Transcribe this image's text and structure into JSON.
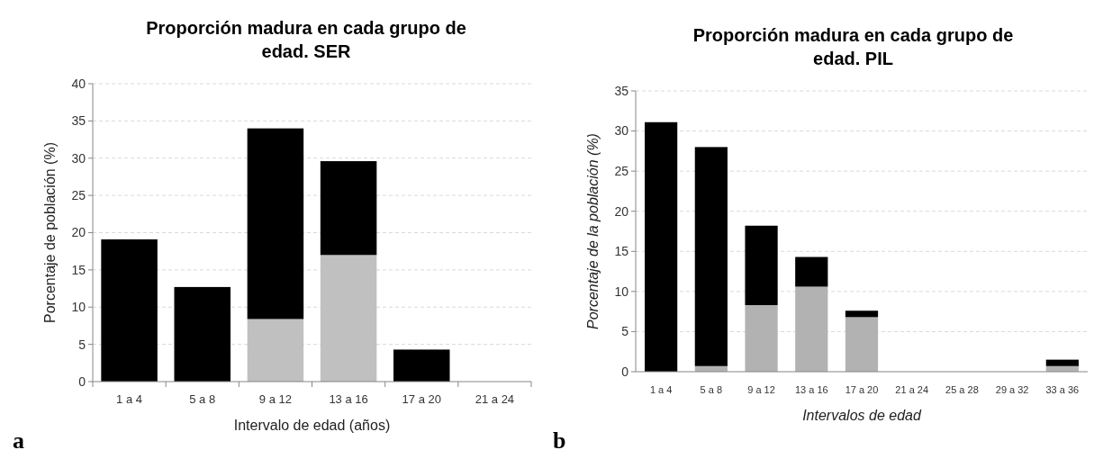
{
  "chart_data": [
    {
      "type": "bar",
      "title": "Proporción madura en cada grupo de edad. SER",
      "xlabel": "Intervalo de edad (años)",
      "ylabel": "Porcentaje de población (%)",
      "categories": [
        "1 a 4",
        "5 a 8",
        "9 a 12",
        "13 a 16",
        "17 a 20",
        "21 a 24"
      ],
      "stacked": true,
      "series": [
        {
          "color": "#c0c0c0",
          "values": [
            0,
            0,
            8.4,
            17,
            0,
            0
          ]
        },
        {
          "color": "#000000",
          "values": [
            19.1,
            12.7,
            25.6,
            12.6,
            4.3,
            0
          ]
        }
      ],
      "ylim": [
        0,
        40
      ],
      "yticks": [
        0,
        5,
        10,
        15,
        20,
        25,
        30,
        35,
        40
      ],
      "grid": "y",
      "legend": false,
      "annotations": [
        "a"
      ]
    },
    {
      "type": "bar",
      "title": "Proporción madura en cada grupo de edad. PIL",
      "xlabel": "Intervalos de edad",
      "ylabel": "Porcentaje de la población (%)",
      "categories": [
        "1 a 4",
        "5 a 8",
        "9 a 12",
        "13 a 16",
        "17 a 20",
        "21 a 24",
        "25 a 28",
        "29 a 32",
        "33 a 36"
      ],
      "stacked": true,
      "series": [
        {
          "color": "#b2b2b2",
          "values": [
            0,
            0.7,
            8.3,
            10.6,
            6.8,
            0,
            0,
            0,
            0.7
          ]
        },
        {
          "color": "#000000",
          "values": [
            31.1,
            27.3,
            9.9,
            3.7,
            0.8,
            0,
            0,
            0,
            0.8
          ]
        }
      ],
      "ylim": [
        0,
        35
      ],
      "yticks": [
        0,
        5,
        10,
        15,
        20,
        25,
        30,
        35
      ],
      "grid": "y",
      "legend": false,
      "annotations": [
        "b"
      ]
    }
  ]
}
